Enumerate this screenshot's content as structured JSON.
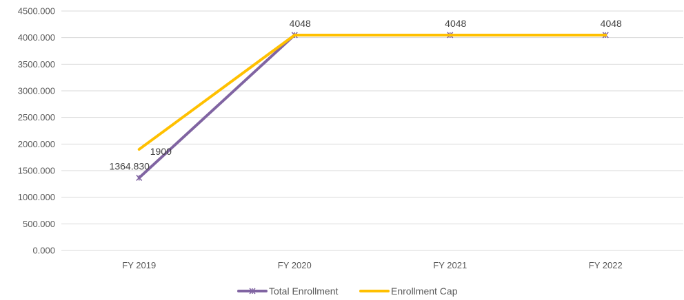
{
  "chart_data": {
    "type": "line",
    "title": "",
    "xlabel": "",
    "ylabel": "",
    "categories": [
      "FY 2019",
      "FY 2020",
      "FY 2021",
      "FY 2022"
    ],
    "ylim": [
      0,
      4500
    ],
    "yticks": [
      "0.000",
      "500.000",
      "1000.000",
      "1500.000",
      "2000.000",
      "2500.000",
      "3000.000",
      "3500.000",
      "4000.000",
      "4500.000"
    ],
    "grid": true,
    "legend_position": "bottom",
    "series": [
      {
        "name": "Total Enrollment",
        "values": [
          1364.83,
          4048,
          4048,
          4048
        ],
        "color": "#8064a2",
        "marker": "star-x",
        "data_labels": [
          "1364.830",
          "",
          "",
          ""
        ]
      },
      {
        "name": "Enrollment Cap",
        "values": [
          1900,
          4048,
          4048,
          4048
        ],
        "color": "#ffc000",
        "marker": "none",
        "data_labels": [
          "1900",
          "4048",
          "4048",
          "4048"
        ]
      }
    ]
  }
}
